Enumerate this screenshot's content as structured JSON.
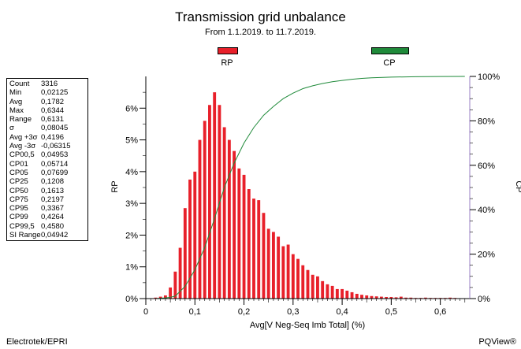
{
  "title": "Transmission grid unbalance",
  "subtitle": "From 1.1.2019. to 11.7.2019.",
  "legend": [
    {
      "label": "RP",
      "color": "#e8202a"
    },
    {
      "label": "CP",
      "color": "#1f8a3a"
    }
  ],
  "stats": [
    {
      "name": "Count",
      "value": "3316"
    },
    {
      "name": "Min",
      "value": "0,02125"
    },
    {
      "name": "Avg",
      "value": "0,1782"
    },
    {
      "name": "Max",
      "value": "0,6344"
    },
    {
      "name": "Range",
      "value": "0,6131"
    },
    {
      "name": "σ",
      "value": "0,08045"
    },
    {
      "name": "Avg +3σ",
      "value": "0,4196"
    },
    {
      "name": "Avg -3σ",
      "value": "-0,06315"
    },
    {
      "name": "CP00,5",
      "value": "0,04953"
    },
    {
      "name": "CP01",
      "value": "0,05714"
    },
    {
      "name": "CP05",
      "value": "0,07699"
    },
    {
      "name": "CP25",
      "value": "0,1208"
    },
    {
      "name": "CP50",
      "value": "0,1613"
    },
    {
      "name": "CP75",
      "value": "0,2197"
    },
    {
      "name": "CP95",
      "value": "0,3367"
    },
    {
      "name": "CP99",
      "value": "0,4264"
    },
    {
      "name": "CP99,5",
      "value": "0,4580"
    },
    {
      "name": "SI Range",
      "value": "0,04942"
    }
  ],
  "footer_left": "Electrotek/EPRI",
  "footer_right": "PQView®",
  "chart_data": {
    "type": "bar",
    "xlabel": "Avg[V Neg-Seq Imb Total] (%)",
    "ylabel": "RP",
    "y2label": "CP",
    "xlim": [
      0,
      0.66
    ],
    "ylim": [
      0,
      7
    ],
    "y2lim": [
      0,
      100
    ],
    "x_ticks": [
      "0",
      "0,1",
      "0,2",
      "0,3",
      "0,4",
      "0,5",
      "0,6"
    ],
    "y_ticks": [
      "0%",
      "1%",
      "2%",
      "3%",
      "4%",
      "5%",
      "6%"
    ],
    "y2_ticks": [
      "0%",
      "20%",
      "40%",
      "60%",
      "80%",
      "100%"
    ],
    "bin_width": 0.01,
    "bars": {
      "name": "RP",
      "color": "#e8202a",
      "x": [
        0.02,
        0.03,
        0.04,
        0.05,
        0.06,
        0.07,
        0.08,
        0.09,
        0.1,
        0.11,
        0.12,
        0.13,
        0.14,
        0.15,
        0.16,
        0.17,
        0.18,
        0.19,
        0.2,
        0.21,
        0.22,
        0.23,
        0.24,
        0.25,
        0.26,
        0.27,
        0.28,
        0.29,
        0.3,
        0.31,
        0.32,
        0.33,
        0.34,
        0.35,
        0.36,
        0.37,
        0.38,
        0.39,
        0.4,
        0.41,
        0.42,
        0.43,
        0.44,
        0.45,
        0.46,
        0.47,
        0.48,
        0.49,
        0.5,
        0.51,
        0.52,
        0.53,
        0.54,
        0.55,
        0.56,
        0.57,
        0.58,
        0.59,
        0.6,
        0.61,
        0.62,
        0.63
      ],
      "values": [
        0.03,
        0.06,
        0.1,
        0.35,
        0.85,
        1.6,
        2.85,
        3.75,
        4.0,
        5.0,
        5.6,
        6.1,
        6.5,
        6.1,
        5.4,
        5.0,
        4.65,
        4.1,
        3.9,
        3.45,
        3.15,
        3.1,
        2.7,
        2.2,
        2.1,
        1.95,
        1.65,
        1.7,
        1.4,
        1.25,
        1.05,
        0.9,
        0.75,
        0.7,
        0.55,
        0.45,
        0.4,
        0.3,
        0.3,
        0.25,
        0.2,
        0.15,
        0.12,
        0.1,
        0.08,
        0.07,
        0.06,
        0.05,
        0.05,
        0.04,
        0.06,
        0.03,
        0.03,
        0.02,
        0.02,
        0.03,
        0.02,
        0.02,
        0.02,
        0.02,
        0.03,
        0.02
      ]
    },
    "line": {
      "name": "CP",
      "color": "#1f8a3a",
      "x": [
        0.02,
        0.04,
        0.05,
        0.06,
        0.08,
        0.1,
        0.12,
        0.14,
        0.16,
        0.18,
        0.2,
        0.22,
        0.24,
        0.26,
        0.28,
        0.3,
        0.32,
        0.34,
        0.36,
        0.38,
        0.4,
        0.42,
        0.44,
        0.46,
        0.5,
        0.55,
        0.6,
        0.65
      ],
      "values": [
        0,
        0.3,
        0.6,
        1.1,
        5.5,
        13,
        23,
        36,
        50,
        61,
        70,
        77,
        82.5,
        86.5,
        90,
        92.5,
        94.5,
        95.8,
        96.8,
        97.6,
        98.2,
        98.7,
        99.1,
        99.4,
        99.7,
        99.85,
        99.95,
        100
      ]
    }
  }
}
